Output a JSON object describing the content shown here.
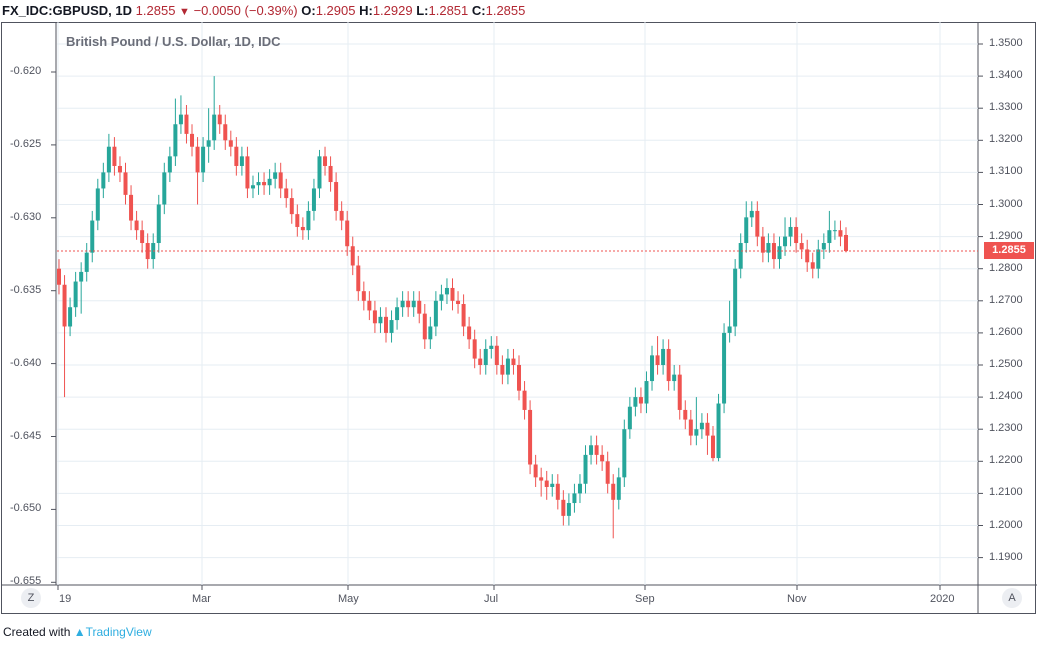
{
  "header": {
    "symbol": "FX_IDC:GBPUSD, 1D",
    "last": "1.2855",
    "change": "−0.0050 (−0.39%)",
    "o_label": "O:",
    "o": "1.2905",
    "h_label": "H:",
    "h": "1.2929",
    "l_label": "L:",
    "l": "1.2851",
    "c_label": "C:",
    "c": "1.2855",
    "direction_icon": "triangle-down"
  },
  "footer": {
    "created_with": "Created with",
    "brand": "TradingView"
  },
  "buttons": {
    "left": "Z",
    "right": "A"
  },
  "colors": {
    "up": "#26a69a",
    "down": "#ef5350",
    "last_price_line": "#ef5350"
  },
  "chart_data": {
    "type": "candlestick",
    "title": "British Pound / U.S. Dollar, 1D, IDC",
    "last_price": "1.2855",
    "x_ticks": [
      "19",
      "Mar",
      "May",
      "Jul",
      "Sep",
      "Nov",
      "2020"
    ],
    "y_right_ticks": [
      "1.3500",
      "1.3400",
      "1.3300",
      "1.3200",
      "1.3100",
      "1.3000",
      "1.2900",
      "1.2800",
      "1.2700",
      "1.2600",
      "1.2500",
      "1.2400",
      "1.2300",
      "1.2200",
      "1.2100",
      "1.2000",
      "1.1900"
    ],
    "y_left_ticks": [
      "-0.620",
      "-0.625",
      "-0.630",
      "-0.635",
      "-0.640",
      "-0.645",
      "-0.650",
      "-0.655"
    ],
    "ylim": [
      1.1865,
      1.356
    ],
    "grid": true,
    "candles_ohlc": [
      [
        1.28,
        1.283,
        1.272,
        1.275
      ],
      [
        1.275,
        1.278,
        1.24,
        1.262
      ],
      [
        1.262,
        1.271,
        1.259,
        1.268
      ],
      [
        1.268,
        1.279,
        1.265,
        1.276
      ],
      [
        1.276,
        1.282,
        1.266,
        1.279
      ],
      [
        1.279,
        1.288,
        1.276,
        1.285
      ],
      [
        1.285,
        1.298,
        1.282,
        1.295
      ],
      [
        1.295,
        1.308,
        1.292,
        1.305
      ],
      [
        1.305,
        1.313,
        1.302,
        1.31
      ],
      [
        1.31,
        1.322,
        1.307,
        1.318
      ],
      [
        1.318,
        1.321,
        1.309,
        1.312
      ],
      [
        1.312,
        1.315,
        1.307,
        1.31
      ],
      [
        1.31,
        1.313,
        1.3,
        1.303
      ],
      [
        1.303,
        1.306,
        1.292,
        1.295
      ],
      [
        1.295,
        1.298,
        1.289,
        1.292
      ],
      [
        1.292,
        1.295,
        1.285,
        1.288
      ],
      [
        1.288,
        1.291,
        1.28,
        1.283
      ],
      [
        1.283,
        1.291,
        1.28,
        1.288
      ],
      [
        1.288,
        1.303,
        1.285,
        1.3
      ],
      [
        1.3,
        1.313,
        1.297,
        1.31
      ],
      [
        1.31,
        1.318,
        1.307,
        1.315
      ],
      [
        1.315,
        1.333,
        1.312,
        1.325
      ],
      [
        1.325,
        1.334,
        1.322,
        1.328
      ],
      [
        1.328,
        1.331,
        1.319,
        1.322
      ],
      [
        1.322,
        1.325,
        1.315,
        1.318
      ],
      [
        1.318,
        1.321,
        1.3,
        1.31
      ],
      [
        1.31,
        1.321,
        1.307,
        1.318
      ],
      [
        1.318,
        1.33,
        1.313,
        1.32
      ],
      [
        1.32,
        1.34,
        1.317,
        1.328
      ],
      [
        1.328,
        1.331,
        1.322,
        1.325
      ],
      [
        1.325,
        1.328,
        1.317,
        1.32
      ],
      [
        1.32,
        1.323,
        1.315,
        1.318
      ],
      [
        1.318,
        1.321,
        1.309,
        1.312
      ],
      [
        1.312,
        1.318,
        1.309,
        1.315
      ],
      [
        1.315,
        1.318,
        1.302,
        1.305
      ],
      [
        1.305,
        1.309,
        1.302,
        1.306
      ],
      [
        1.306,
        1.31,
        1.303,
        1.307
      ],
      [
        1.307,
        1.31,
        1.303,
        1.306
      ],
      [
        1.306,
        1.311,
        1.303,
        1.308
      ],
      [
        1.308,
        1.313,
        1.305,
        1.31
      ],
      [
        1.31,
        1.313,
        1.302,
        1.305
      ],
      [
        1.305,
        1.308,
        1.299,
        1.302
      ],
      [
        1.302,
        1.305,
        1.294,
        1.297
      ],
      [
        1.297,
        1.3,
        1.29,
        1.293
      ],
      [
        1.293,
        1.296,
        1.289,
        1.292
      ],
      [
        1.292,
        1.301,
        1.289,
        1.298
      ],
      [
        1.298,
        1.308,
        1.295,
        1.305
      ],
      [
        1.305,
        1.317,
        1.302,
        1.315
      ],
      [
        1.315,
        1.318,
        1.309,
        1.312
      ],
      [
        1.312,
        1.315,
        1.304,
        1.307
      ],
      [
        1.307,
        1.31,
        1.295,
        1.298
      ],
      [
        1.298,
        1.301,
        1.292,
        1.295
      ],
      [
        1.295,
        1.298,
        1.284,
        1.287
      ],
      [
        1.287,
        1.29,
        1.278,
        1.281
      ],
      [
        1.281,
        1.284,
        1.27,
        1.273
      ],
      [
        1.273,
        1.276,
        1.267,
        1.27
      ],
      [
        1.27,
        1.273,
        1.264,
        1.267
      ],
      [
        1.267,
        1.27,
        1.26,
        1.263
      ],
      [
        1.263,
        1.268,
        1.26,
        1.265
      ],
      [
        1.265,
        1.268,
        1.257,
        1.26
      ],
      [
        1.26,
        1.267,
        1.257,
        1.264
      ],
      [
        1.264,
        1.271,
        1.261,
        1.268
      ],
      [
        1.268,
        1.273,
        1.265,
        1.27
      ],
      [
        1.27,
        1.273,
        1.265,
        1.268
      ],
      [
        1.268,
        1.273,
        1.265,
        1.27
      ],
      [
        1.27,
        1.273,
        1.263,
        1.266
      ],
      [
        1.266,
        1.269,
        1.255,
        1.258
      ],
      [
        1.258,
        1.265,
        1.255,
        1.262
      ],
      [
        1.262,
        1.273,
        1.259,
        1.27
      ],
      [
        1.27,
        1.275,
        1.267,
        1.272
      ],
      [
        1.272,
        1.277,
        1.269,
        1.274
      ],
      [
        1.274,
        1.277,
        1.267,
        1.27
      ],
      [
        1.27,
        1.273,
        1.266,
        1.269
      ],
      [
        1.269,
        1.272,
        1.259,
        1.262
      ],
      [
        1.262,
        1.265,
        1.255,
        1.258
      ],
      [
        1.258,
        1.261,
        1.249,
        1.252
      ],
      [
        1.252,
        1.255,
        1.247,
        1.25
      ],
      [
        1.25,
        1.258,
        1.247,
        1.255
      ],
      [
        1.255,
        1.259,
        1.252,
        1.256
      ],
      [
        1.256,
        1.259,
        1.247,
        1.25
      ],
      [
        1.25,
        1.253,
        1.244,
        1.247
      ],
      [
        1.247,
        1.255,
        1.244,
        1.252
      ],
      [
        1.252,
        1.255,
        1.247,
        1.25
      ],
      [
        1.25,
        1.253,
        1.239,
        1.242
      ],
      [
        1.242,
        1.245,
        1.233,
        1.236
      ],
      [
        1.236,
        1.239,
        1.216,
        1.219
      ],
      [
        1.219,
        1.222,
        1.212,
        1.215
      ],
      [
        1.215,
        1.218,
        1.209,
        1.214
      ],
      [
        1.214,
        1.217,
        1.208,
        1.212
      ],
      [
        1.212,
        1.216,
        1.209,
        1.213
      ],
      [
        1.213,
        1.216,
        1.205,
        1.208
      ],
      [
        1.208,
        1.211,
        1.2,
        1.203
      ],
      [
        1.203,
        1.21,
        1.2,
        1.207
      ],
      [
        1.207,
        1.213,
        1.204,
        1.21
      ],
      [
        1.21,
        1.216,
        1.207,
        1.213
      ],
      [
        1.213,
        1.225,
        1.21,
        1.222
      ],
      [
        1.222,
        1.228,
        1.219,
        1.225
      ],
      [
        1.225,
        1.228,
        1.219,
        1.222
      ],
      [
        1.222,
        1.225,
        1.217,
        1.22
      ],
      [
        1.22,
        1.223,
        1.21,
        1.213
      ],
      [
        1.213,
        1.216,
        1.196,
        1.208
      ],
      [
        1.208,
        1.218,
        1.205,
        1.215
      ],
      [
        1.215,
        1.233,
        1.212,
        1.23
      ],
      [
        1.23,
        1.24,
        1.227,
        1.237
      ],
      [
        1.237,
        1.243,
        1.234,
        1.24
      ],
      [
        1.24,
        1.243,
        1.235,
        1.238
      ],
      [
        1.238,
        1.248,
        1.235,
        1.245
      ],
      [
        1.245,
        1.256,
        1.242,
        1.253
      ],
      [
        1.253,
        1.259,
        1.247,
        1.25
      ],
      [
        1.25,
        1.258,
        1.247,
        1.255
      ],
      [
        1.255,
        1.258,
        1.242,
        1.245
      ],
      [
        1.245,
        1.25,
        1.242,
        1.247
      ],
      [
        1.247,
        1.25,
        1.233,
        1.236
      ],
      [
        1.236,
        1.239,
        1.23,
        1.233
      ],
      [
        1.233,
        1.236,
        1.225,
        1.228
      ],
      [
        1.228,
        1.24,
        1.225,
        1.23
      ],
      [
        1.23,
        1.235,
        1.227,
        1.232
      ],
      [
        1.232,
        1.235,
        1.222,
        1.228
      ],
      [
        1.228,
        1.231,
        1.22,
        1.221
      ],
      [
        1.221,
        1.241,
        1.22,
        1.238
      ],
      [
        1.238,
        1.263,
        1.235,
        1.26
      ],
      [
        1.26,
        1.27,
        1.257,
        1.262
      ],
      [
        1.262,
        1.283,
        1.259,
        1.28
      ],
      [
        1.28,
        1.291,
        1.277,
        1.288
      ],
      [
        1.288,
        1.301,
        1.285,
        1.296
      ],
      [
        1.296,
        1.301,
        1.293,
        1.298
      ],
      [
        1.298,
        1.301,
        1.287,
        1.29
      ],
      [
        1.29,
        1.293,
        1.282,
        1.285
      ],
      [
        1.285,
        1.291,
        1.282,
        1.288
      ],
      [
        1.288,
        1.291,
        1.28,
        1.283
      ],
      [
        1.283,
        1.29,
        1.28,
        1.287
      ],
      [
        1.287,
        1.296,
        1.284,
        1.29
      ],
      [
        1.29,
        1.296,
        1.287,
        1.293
      ],
      [
        1.293,
        1.296,
        1.285,
        1.288
      ],
      [
        1.288,
        1.291,
        1.283,
        1.286
      ],
      [
        1.286,
        1.289,
        1.279,
        1.282
      ],
      [
        1.282,
        1.285,
        1.277,
        1.28
      ],
      [
        1.28,
        1.289,
        1.277,
        1.286
      ],
      [
        1.286,
        1.291,
        1.283,
        1.288
      ],
      [
        1.288,
        1.298,
        1.285,
        1.292
      ],
      [
        1.292,
        1.295,
        1.289,
        1.292
      ],
      [
        1.292,
        1.295,
        1.287,
        1.29
      ],
      [
        1.2905,
        1.2929,
        1.2851,
        1.2855
      ]
    ]
  }
}
